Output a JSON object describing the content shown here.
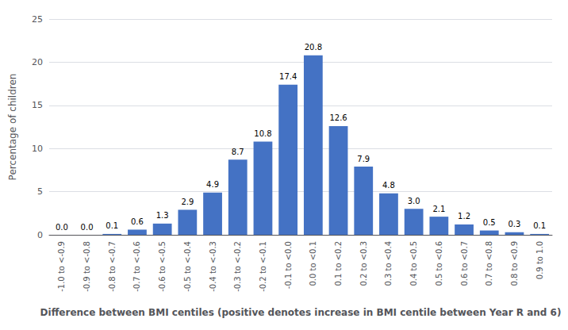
{
  "chart_data": {
    "type": "bar",
    "categories": [
      "-1.0 to <-0.9",
      "-0.9 to <-0.8",
      "-0.8 to <-0.7",
      "-0.7 to <-0.6",
      "-0.6 to <-0.5",
      "-0.5 to <-0.4",
      "-0.4 to <-0.3",
      "-0.3 to <-0.2",
      "-0.2 to <-0.1",
      "-0.1 to <0.0",
      "0.0 to <0.1",
      "0.1 to <0.2",
      "0.2 to <0.3",
      "0.3 to <0.4",
      "0.4 to <0.5",
      "0.5 to <0.6",
      "0.6 to <0.7",
      "0.7 to <0.8",
      "0.8 to <0.9",
      "0.9 to 1.0"
    ],
    "values": [
      0.0,
      0.0,
      0.1,
      0.6,
      1.3,
      2.9,
      4.9,
      8.7,
      10.8,
      17.4,
      20.8,
      12.6,
      7.9,
      4.8,
      3.0,
      2.1,
      1.2,
      0.5,
      0.3,
      0.1
    ],
    "value_labels": [
      "0.0",
      "0.0",
      "0.1",
      "0.6",
      "1.3",
      "2.9",
      "4.9",
      "8.7",
      "10.8",
      "17.4",
      "20.8",
      "12.6",
      "7.9",
      "4.8",
      "3.0",
      "2.1",
      "1.2",
      "0.5",
      "0.3",
      "0.1"
    ],
    "color": "#4472C4",
    "xlabel": "Difference between BMI centiles (positive denotes increase in BMI centile between Year R and 6)",
    "ylabel": "Percentage of children",
    "ylim": [
      0,
      25
    ],
    "yticks": [
      0,
      5,
      10,
      15,
      20,
      25
    ],
    "grid": true,
    "data_labels": true
  }
}
